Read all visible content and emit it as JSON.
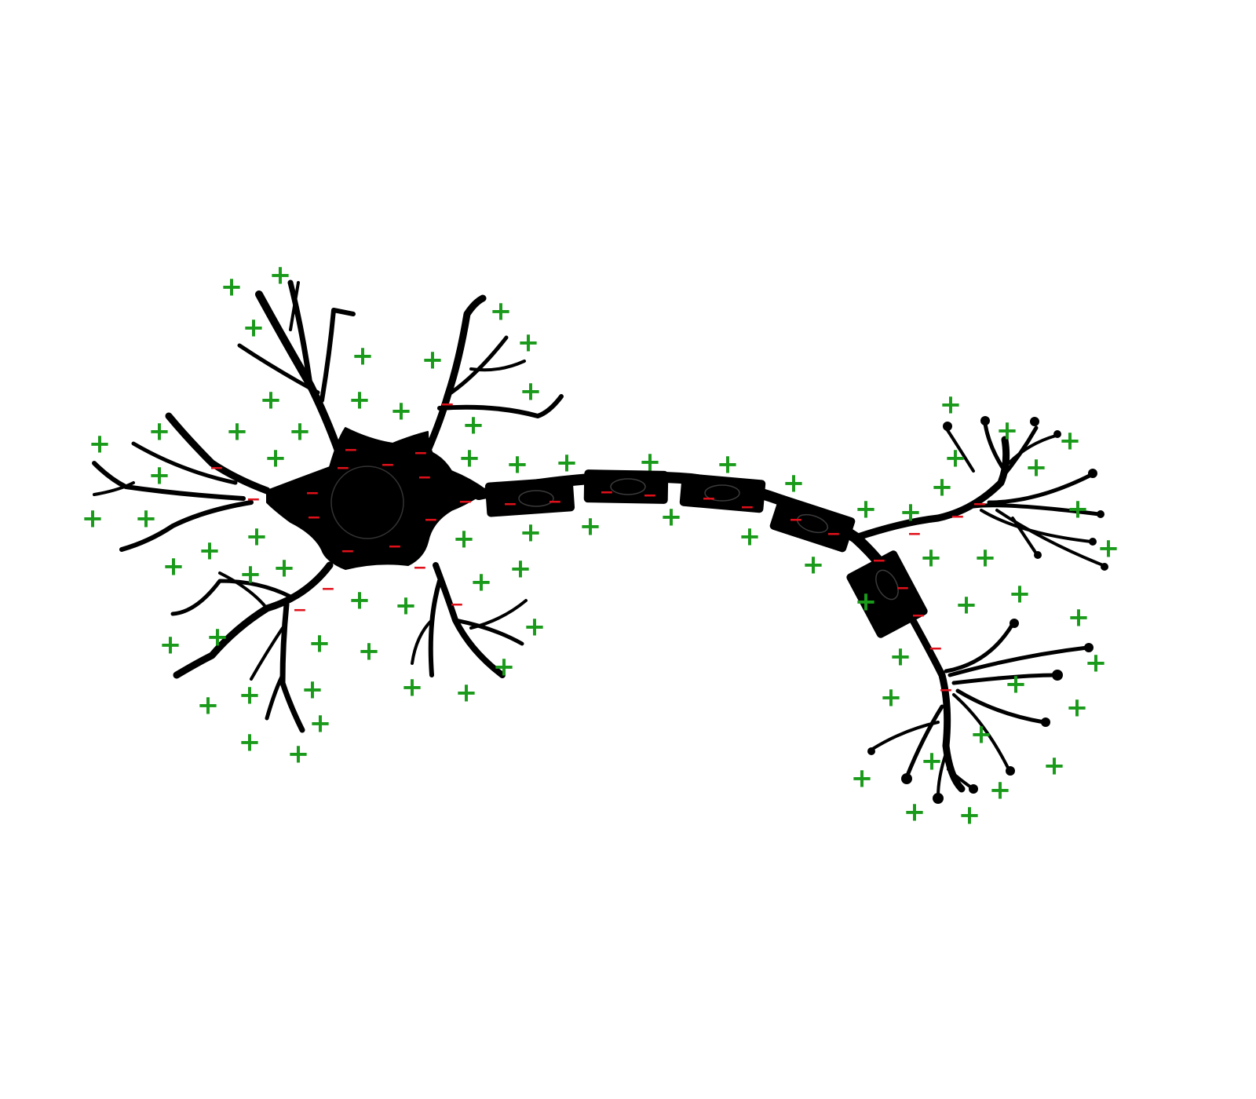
{
  "colors": {
    "background": "#ffffff",
    "neuron": "#000000",
    "outside_charge": "#1a9a1a",
    "inside_charge": "#e0101a"
  },
  "diagram": {
    "subject": "neuron",
    "outside_charge_symbol": "+",
    "inside_charge_symbol": "−",
    "parts": [
      "dendrites",
      "cell-body",
      "nucleus",
      "myelinated-axon",
      "myelin-sheath-segments",
      "axon-terminals"
    ]
  }
}
